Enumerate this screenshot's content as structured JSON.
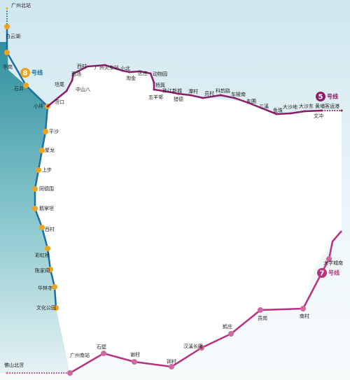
{
  "lines": [
    {
      "number": "8",
      "label": "号线",
      "stations": [
        "广州北站",
        "白云湖",
        "亭岗",
        "石井",
        "小坪",
        "平沙",
        "聚龙",
        "上步",
        "同德围",
        "鹅掌坦",
        "西村",
        "彩虹桥",
        "陈家祠",
        "华林寺",
        "文化公园"
      ]
    },
    {
      "number": "5",
      "label": "号线",
      "stations": [
        "滘口",
        "坦尾",
        "中山八",
        "西场",
        "西村",
        "广州火车站",
        "小北",
        "淘金",
        "区庄",
        "动物园",
        "杨箕",
        "五羊邨",
        "珠江新城",
        "猎德",
        "潭村",
        "员村",
        "科韵路",
        "车陂南",
        "东圃",
        "三溪",
        "鱼珠",
        "大沙地",
        "大沙东",
        "黄埔客运港",
        "文冲"
      ]
    },
    {
      "number": "7",
      "label": "号线",
      "stations": [
        "佛山北滘",
        "广州南站",
        "石壁",
        "谢村",
        "钟村",
        "汉溪长隆",
        "鹤庄",
        "员岗",
        "南村",
        "大学城南"
      ]
    }
  ]
}
